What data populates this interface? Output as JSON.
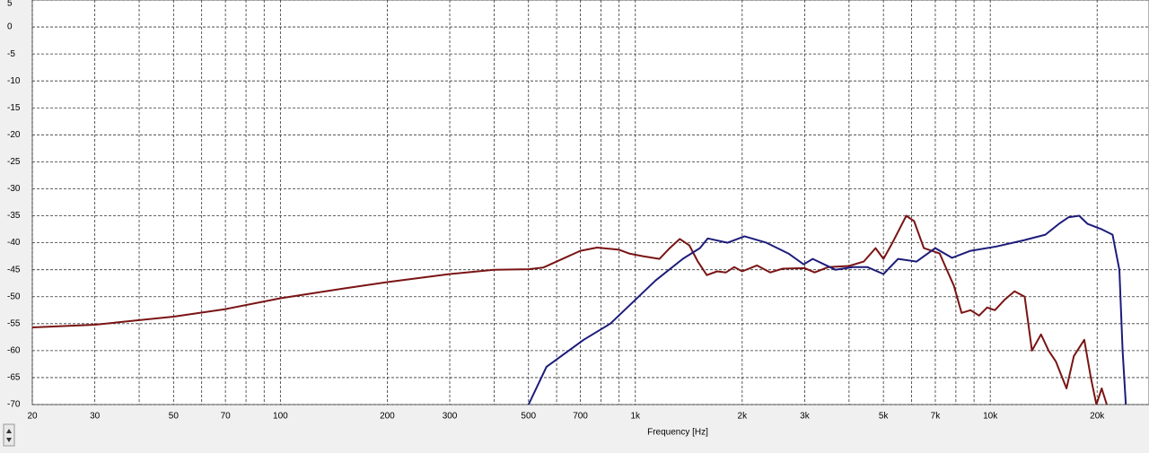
{
  "chart_data": {
    "type": "line",
    "xlabel": "Frequency [Hz]",
    "xscale": "log",
    "xlim": [
      20,
      28000
    ],
    "ylim": [
      -70,
      5
    ],
    "xticks": [
      20,
      30,
      50,
      70,
      100,
      200,
      300,
      500,
      700,
      {
        "value": 1000,
        "label": "1k"
      },
      {
        "value": 2000,
        "label": "2k"
      },
      {
        "value": 3000,
        "label": "3k"
      },
      {
        "value": 5000,
        "label": "5k"
      },
      {
        "value": 7000,
        "label": "7k"
      },
      {
        "value": 10000,
        "label": "10k"
      },
      {
        "value": 20000,
        "label": "20k"
      }
    ],
    "xminorticks": [
      40,
      60,
      80,
      90,
      400,
      600,
      800,
      900,
      4000,
      6000,
      8000,
      9000
    ],
    "yticks": [
      5,
      0,
      -5,
      -10,
      -15,
      -20,
      -25,
      -30,
      -35,
      -40,
      -45,
      -50,
      -55,
      -60,
      -65,
      -70
    ],
    "grid": true,
    "series": [
      {
        "color": "#7a1414",
        "x": [
          20,
          30,
          50,
          70,
          100,
          150,
          200,
          300,
          400,
          500,
          550,
          600,
          700,
          780,
          900,
          960,
          1050,
          1170,
          1250,
          1334,
          1420,
          1500,
          1590,
          1700,
          1800,
          1900,
          2000,
          2200,
          2400,
          2600,
          3000,
          3200,
          3500,
          4000,
          4400,
          4750,
          5000,
          5300,
          5800,
          6100,
          6500,
          7200,
          7900,
          8300,
          8800,
          9300,
          9800,
          10300,
          11000,
          11700,
          12500,
          13100,
          13900,
          14600,
          15300,
          16400,
          17200,
          18400,
          19200,
          19900,
          20600,
          21300,
          22000
        ],
        "values": [
          -55.7,
          -55.2,
          -53.7,
          -52.3,
          -50.3,
          -48.5,
          -47.3,
          -45.8,
          -45.0,
          -44.9,
          -44.6,
          -43.5,
          -41.5,
          -40.9,
          -41.3,
          -42.0,
          -42.5,
          -43.0,
          -41.0,
          -39.3,
          -40.5,
          -43.5,
          -46.0,
          -45.3,
          -45.5,
          -44.5,
          -45.3,
          -44.2,
          -45.5,
          -44.8,
          -44.7,
          -45.5,
          -44.5,
          -44.3,
          -43.5,
          -41.0,
          -43.0,
          -40.0,
          -35.0,
          -36.0,
          -41.0,
          -42.0,
          -48.0,
          -53.0,
          -52.5,
          -53.5,
          -52.0,
          -52.5,
          -50.5,
          -49.0,
          -50.0,
          -60.0,
          -57.0,
          -60.0,
          -62.0,
          -67.0,
          -61.0,
          -58.0,
          -65.0,
          -70.0,
          -67.0,
          -70.0,
          null
        ]
      },
      {
        "color": "#1c1c7a",
        "x": [
          500,
          562,
          715,
          850,
          985,
          1140,
          1360,
          1520,
          1600,
          1820,
          2030,
          2340,
          2700,
          2980,
          3160,
          3660,
          4100,
          4500,
          5000,
          5500,
          6200,
          7000,
          7800,
          8800,
          10400,
          12500,
          14300,
          15600,
          16600,
          17800,
          18800,
          20600,
          22100,
          23100,
          23600,
          24100
        ],
        "values": [
          -70,
          -63,
          -58,
          -55,
          -51,
          -47,
          -43,
          -41,
          -39.2,
          -40,
          -38.8,
          -40,
          -42,
          -44,
          -43,
          -45,
          -44.5,
          -44.5,
          -45.8,
          -43,
          -43.5,
          -41,
          -42.8,
          -41.5,
          -40.7,
          -39.5,
          -38.5,
          -36.5,
          -35.3,
          -35,
          -36.5,
          -37.5,
          -38.5,
          -45,
          -60,
          -70
        ]
      }
    ]
  }
}
